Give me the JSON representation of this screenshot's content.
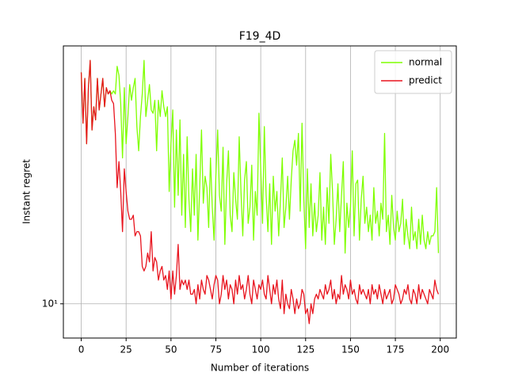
{
  "chart_data": {
    "type": "line",
    "title": "F19_4D",
    "xlabel": "Number of iterations",
    "ylabel": "Instant regret",
    "yscale": "log",
    "grid": true,
    "legend": "upper right",
    "xlim": [
      -9.95,
      208.95
    ],
    "xticks": [
      0,
      25,
      50,
      75,
      100,
      125,
      150,
      175,
      200
    ],
    "ylim": [
      9.32,
      17.0
    ],
    "yticks": [
      {
        "value": 10,
        "label": "10¹"
      }
    ],
    "x": [
      0,
      1,
      2,
      3,
      4,
      5,
      6,
      7,
      8,
      9,
      10,
      11,
      12,
      13,
      14,
      15,
      16,
      17,
      18,
      19,
      20,
      21,
      22,
      23,
      24,
      25,
      26,
      27,
      28,
      29,
      30,
      31,
      32,
      33,
      34,
      35,
      36,
      37,
      38,
      39,
      40,
      41,
      42,
      43,
      44,
      45,
      46,
      47,
      48,
      49,
      50,
      51,
      52,
      53,
      54,
      55,
      56,
      57,
      58,
      59,
      60,
      61,
      62,
      63,
      64,
      65,
      66,
      67,
      68,
      69,
      70,
      71,
      72,
      73,
      74,
      75,
      76,
      77,
      78,
      79,
      80,
      81,
      82,
      83,
      84,
      85,
      86,
      87,
      88,
      89,
      90,
      91,
      92,
      93,
      94,
      95,
      96,
      97,
      98,
      99,
      100,
      101,
      102,
      103,
      104,
      105,
      106,
      107,
      108,
      109,
      110,
      111,
      112,
      113,
      114,
      115,
      116,
      117,
      118,
      119,
      120,
      121,
      122,
      123,
      124,
      125,
      126,
      127,
      128,
      129,
      130,
      131,
      132,
      133,
      134,
      135,
      136,
      137,
      138,
      139,
      140,
      141,
      142,
      143,
      144,
      145,
      146,
      147,
      148,
      149,
      150,
      151,
      152,
      153,
      154,
      155,
      156,
      157,
      158,
      159,
      160,
      161,
      162,
      163,
      164,
      165,
      166,
      167,
      168,
      169,
      170,
      171,
      172,
      173,
      174,
      175,
      176,
      177,
      178,
      179,
      180,
      181,
      182,
      183,
      184,
      185,
      186,
      187,
      188,
      189,
      190,
      191,
      192,
      193,
      194,
      195,
      196,
      197,
      198,
      199
    ],
    "series": [
      {
        "name": "normal",
        "color": "#7fff00",
        "values": [
          16.1,
          14.5,
          15.9,
          13.9,
          15.6,
          16.5,
          14.3,
          15.0,
          14.6,
          15.9,
          14.9,
          15.4,
          15.9,
          15.0,
          15.6,
          15.4,
          15.5,
          15.4,
          15.5,
          15.4,
          16.3,
          16.0,
          15.1,
          13.5,
          15.6,
          13.9,
          14.7,
          15.7,
          15.2,
          15.6,
          15.9,
          14.4,
          13.7,
          14.7,
          15.4,
          16.5,
          14.7,
          15.2,
          15.7,
          14.9,
          14.8,
          15.2,
          13.7,
          15.2,
          14.7,
          15.5,
          15.0,
          14.7,
          15.0,
          12.6,
          13.9,
          14.9,
          12.2,
          14.3,
          12.5,
          14.6,
          12.0,
          13.6,
          11.7,
          14.1,
          12.4,
          11.6,
          13.2,
          12.0,
          13.6,
          11.4,
          12.7,
          14.3,
          12.3,
          13.0,
          12.7,
          11.7,
          13.5,
          12.2,
          11.4,
          13.0,
          14.3,
          12.5,
          12.1,
          13.8,
          11.3,
          12.8,
          13.7,
          12.0,
          11.6,
          13.1,
          12.4,
          11.9,
          14.1,
          12.6,
          11.5,
          12.9,
          13.4,
          11.8,
          12.2,
          13.3,
          11.4,
          12.6,
          12.0,
          14.8,
          13.2,
          11.8,
          14.4,
          12.5,
          11.6,
          12.8,
          11.3,
          13.0,
          12.1,
          12.6,
          11.5,
          12.4,
          13.5,
          11.7,
          12.2,
          13.0,
          11.9,
          12.9,
          13.7,
          14.0,
          13.3,
          14.2,
          12.1,
          14.5,
          12.4,
          11.2,
          13.2,
          11.7,
          12.8,
          11.5,
          12.3,
          11.6,
          12.0,
          13.1,
          11.4,
          12.2,
          11.3,
          12.7,
          11.8,
          13.6,
          12.6,
          11.3,
          11.9,
          12.8,
          11.6,
          12.5,
          13.4,
          11.1,
          12.3,
          11.7,
          12.2,
          13.7,
          11.5,
          12.8,
          12.9,
          11.4,
          12.4,
          13.0,
          11.8,
          12.2,
          11.6,
          12.0,
          11.4,
          12.7,
          11.8,
          12.1,
          11.5,
          12.3,
          11.9,
          14.2,
          11.6,
          12.0,
          11.3,
          12.5,
          11.7,
          11.4,
          12.1,
          11.6,
          11.8,
          12.4,
          11.3,
          11.9,
          11.5,
          11.2,
          12.2,
          11.4,
          11.6,
          11.2,
          11.9,
          11.3,
          12.0,
          11.4,
          11.2,
          11.6,
          11.3,
          11.5,
          11.5,
          11.6,
          12.7,
          11.1
        ]
      },
      {
        "name": "predict",
        "color": "#e8141e",
        "values": [
          16.1,
          14.5,
          15.9,
          13.9,
          15.6,
          16.5,
          14.3,
          15.0,
          14.6,
          15.9,
          14.9,
          15.4,
          15.9,
          15.0,
          15.6,
          15.4,
          15.5,
          15.2,
          15.1,
          14.2,
          12.7,
          13.4,
          12.6,
          11.6,
          13.2,
          12.6,
          12.1,
          11.9,
          11.9,
          12.0,
          11.5,
          11.6,
          11.6,
          11.5,
          10.8,
          10.7,
          10.8,
          11.1,
          10.9,
          11.6,
          10.7,
          11.0,
          10.9,
          10.5,
          10.7,
          10.8,
          10.5,
          10.6,
          10.3,
          10.7,
          10.1,
          10.7,
          10.2,
          10.6,
          11.3,
          10.3,
          10.5,
          10.4,
          10.5,
          10.3,
          10.5,
          10.2,
          10.2,
          10.3,
          10.0,
          10.4,
          10.1,
          10.5,
          10.3,
          10.2,
          10.6,
          10.5,
          10.3,
          10.1,
          10.4,
          10.6,
          10.5,
          10.0,
          10.2,
          10.6,
          10.3,
          10.5,
          10.1,
          10.4,
          10.3,
          10.0,
          10.5,
          10.2,
          10.6,
          10.3,
          10.4,
          10.1,
          10.3,
          10.6,
          10.2,
          10.0,
          10.5,
          10.3,
          10.1,
          10.4,
          10.3,
          10.5,
          10.2,
          10.1,
          10.6,
          10.3,
          10.0,
          10.4,
          10.2,
          10.5,
          10.1,
          9.9,
          10.5,
          9.8,
          10.2,
          10.0,
          9.9,
          10.3,
          10.1,
          9.8,
          10.1,
          9.9,
          10.0,
          10.3,
          10.2,
          9.8,
          9.9,
          9.6,
          10.0,
          9.8,
          10.1,
          10.2,
          10.1,
          10.3,
          10.2,
          10.1,
          10.4,
          10.2,
          10.3,
          10.5,
          10.1,
          10.3,
          10.0,
          10.2,
          10.1,
          10.6,
          10.2,
          10.4,
          10.3,
          10.1,
          10.5,
          10.2,
          10.3,
          10.1,
          10.0,
          10.4,
          10.2,
          10.3,
          10.2,
          10.1,
          10.3,
          10.0,
          10.4,
          10.2,
          10.3,
          10.1,
          10.4,
          10.2,
          10.0,
          10.3,
          10.1,
          10.2,
          10.3,
          10.0,
          10.1,
          10.4,
          10.3,
          10.2,
          10.0,
          10.1,
          10.3,
          10.2,
          10.4,
          10.1,
          10.0,
          10.3,
          10.2,
          10.0,
          10.4,
          10.1,
          10.3,
          10.2,
          10.1,
          10.0,
          10.3,
          10.2,
          10.1,
          10.5,
          10.3,
          10.2
        ]
      }
    ]
  }
}
